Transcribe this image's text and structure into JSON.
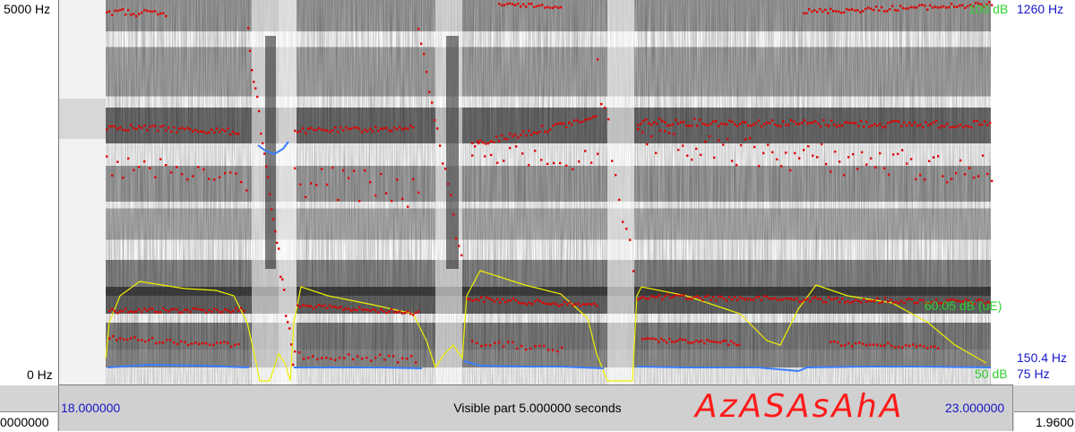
{
  "left_axis": {
    "top_label": "5000 Hz",
    "bottom_label": "0 Hz"
  },
  "right_axis": {
    "pitch_top": "1260 Hz",
    "pitch_mid": "150.4 Hz",
    "pitch_bottom": "75 Hz"
  },
  "intensity": {
    "top_label": "100 dB",
    "current_label": "60.05 dB (uE)",
    "bottom_label": "50 dB"
  },
  "time_bar": {
    "start": "18.000000",
    "end": "23.000000",
    "visible_part": "Visible part 5.000000 seconds",
    "annotation": "AzASAsAhA"
  },
  "bottom_cells": {
    "left": "0000000",
    "right": "1.9600"
  },
  "colors": {
    "formants": "#e00000",
    "pitch": "#3a7dff",
    "intensity": "#f0f000",
    "intensity_label": "#2fd12f",
    "axis_blue": "#1515c8",
    "annotation": "#ff1a1a"
  }
}
